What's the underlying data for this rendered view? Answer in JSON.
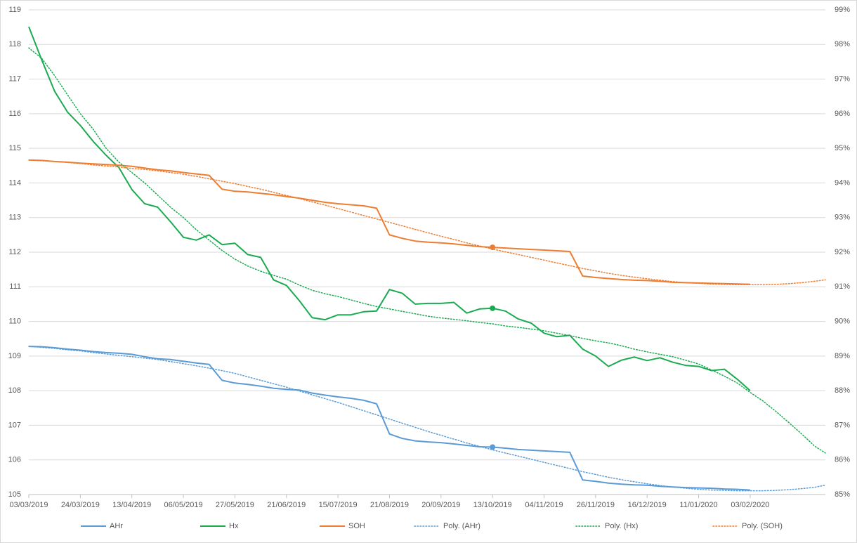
{
  "chart_data": {
    "type": "line",
    "x": [
      0,
      0.25,
      0.5,
      0.75,
      1,
      1.25,
      1.5,
      1.75,
      2,
      2.25,
      2.5,
      2.75,
      3,
      3.25,
      3.5,
      3.75,
      4,
      4.25,
      4.5,
      4.75,
      5,
      5.25,
      5.5,
      5.75,
      6,
      6.25,
      6.5,
      6.75,
      7,
      7.25,
      7.5,
      7.75,
      8,
      8.25,
      8.5,
      8.75,
      9,
      9.25,
      9.5,
      9.75,
      10,
      10.25,
      10.5,
      10.75,
      11,
      11.25,
      11.5,
      11.75,
      12,
      12.25,
      12.5,
      12.75,
      13,
      13.25,
      13.5,
      13.75,
      14,
      14.25,
      14.5,
      14.75,
      15,
      15.25,
      15.46
    ],
    "xlim": [
      0,
      15.46
    ],
    "xticks": [
      {
        "value": 0,
        "label": "03/03/2019"
      },
      {
        "value": 1,
        "label": "24/03/2019"
      },
      {
        "value": 2,
        "label": "13/04/2019"
      },
      {
        "value": 3,
        "label": "06/05/2019"
      },
      {
        "value": 4,
        "label": "27/05/2019"
      },
      {
        "value": 5,
        "label": "21/06/2019"
      },
      {
        "value": 6,
        "label": "15/07/2019"
      },
      {
        "value": 7,
        "label": "21/08/2019"
      },
      {
        "value": 8,
        "label": "20/09/2019"
      },
      {
        "value": 9,
        "label": "13/10/2019"
      },
      {
        "value": 10,
        "label": "04/11/2019"
      },
      {
        "value": 11,
        "label": "26/11/2019"
      },
      {
        "value": 12,
        "label": "16/12/2019"
      },
      {
        "value": 13,
        "label": "11/01/2020"
      },
      {
        "value": 14,
        "label": "03/02/2020"
      }
    ],
    "ylim": [
      105,
      119
    ],
    "yticks": [
      105,
      106,
      107,
      108,
      109,
      110,
      111,
      112,
      113,
      114,
      115,
      116,
      117,
      118,
      119
    ],
    "y2lim": [
      85,
      99
    ],
    "y2ticks": [
      {
        "value": 85,
        "label": "85%"
      },
      {
        "value": 86,
        "label": "86%"
      },
      {
        "value": 87,
        "label": "87%"
      },
      {
        "value": 88,
        "label": "88%"
      },
      {
        "value": 89,
        "label": "89%"
      },
      {
        "value": 90,
        "label": "90%"
      },
      {
        "value": 91,
        "label": "91%"
      },
      {
        "value": 92,
        "label": "92%"
      },
      {
        "value": 93,
        "label": "93%"
      },
      {
        "value": 94,
        "label": "94%"
      },
      {
        "value": 95,
        "label": "95%"
      },
      {
        "value": 96,
        "label": "96%"
      },
      {
        "value": 97,
        "label": "97%"
      },
      {
        "value": 98,
        "label": "98%"
      },
      {
        "value": 99,
        "label": "99%"
      }
    ],
    "grid": true,
    "legend": "bottom",
    "highlight_index": 36,
    "series": [
      {
        "name": "AHr",
        "color": "#5b9bd5",
        "dotted": false,
        "axis": "y",
        "values": [
          109.28,
          109.27,
          109.24,
          109.2,
          109.17,
          109.13,
          109.1,
          109.08,
          109.05,
          108.98,
          108.92,
          108.9,
          108.85,
          108.8,
          108.76,
          108.3,
          108.22,
          108.18,
          108.13,
          108.07,
          108.04,
          108.02,
          107.93,
          107.87,
          107.82,
          107.78,
          107.72,
          107.62,
          106.75,
          106.62,
          106.55,
          106.52,
          106.5,
          106.46,
          106.42,
          106.38,
          106.37,
          106.34,
          106.3,
          106.28,
          106.26,
          106.24,
          106.22,
          105.42,
          105.38,
          105.33,
          105.3,
          105.28,
          105.27,
          105.24,
          105.22,
          105.2,
          105.19,
          105.18,
          105.16,
          105.15,
          105.13,
          null,
          null,
          null,
          null,
          null,
          null
        ]
      },
      {
        "name": "Hx",
        "color": "#1aab50",
        "dotted": false,
        "axis": "y",
        "values": [
          118.51,
          117.56,
          116.65,
          116.05,
          115.66,
          115.2,
          114.8,
          114.44,
          113.81,
          113.4,
          113.3,
          112.88,
          112.43,
          112.35,
          112.5,
          112.22,
          112.26,
          111.93,
          111.85,
          111.2,
          111.04,
          110.6,
          110.11,
          110.05,
          110.19,
          110.19,
          110.28,
          110.3,
          110.92,
          110.81,
          110.5,
          110.52,
          110.52,
          110.55,
          110.24,
          110.36,
          110.38,
          110.3,
          110.07,
          109.95,
          109.66,
          109.56,
          109.6,
          109.2,
          109,
          108.7,
          108.88,
          108.97,
          108.87,
          108.95,
          108.82,
          108.73,
          108.7,
          108.58,
          108.62,
          108.33,
          108,
          null,
          null,
          null,
          null,
          null,
          null
        ]
      },
      {
        "name": "SOH",
        "color": "#ed7d31",
        "dotted": false,
        "axis": "y2",
        "values": [
          94.66,
          94.65,
          94.62,
          94.6,
          94.57,
          94.55,
          94.53,
          94.51,
          94.48,
          94.43,
          94.38,
          94.35,
          94.3,
          94.26,
          94.22,
          93.82,
          93.76,
          93.74,
          93.7,
          93.66,
          93.61,
          93.56,
          93.5,
          93.44,
          93.4,
          93.37,
          93.34,
          93.27,
          92.5,
          92.4,
          92.32,
          92.29,
          92.27,
          92.24,
          92.2,
          92.16,
          92.14,
          92.12,
          92.1,
          92.08,
          92.06,
          92.04,
          92.02,
          91.31,
          91.27,
          91.24,
          91.21,
          91.19,
          91.18,
          91.16,
          91.13,
          91.12,
          91.11,
          91.1,
          91.09,
          91.08,
          91.07,
          null,
          null,
          null,
          null,
          null,
          null
        ]
      },
      {
        "name": "Poly. (AHr)",
        "color": "#5b9bd5",
        "dotted": true,
        "axis": "y",
        "values": [
          109.28,
          109.25,
          109.22,
          109.18,
          109.15,
          109.1,
          109.06,
          109.02,
          108.98,
          108.94,
          108.9,
          108.84,
          108.78,
          108.72,
          108.65,
          108.58,
          108.5,
          108.4,
          108.3,
          108.2,
          108.1,
          107.99,
          107.88,
          107.77,
          107.66,
          107.54,
          107.42,
          107.3,
          107.18,
          107.06,
          106.94,
          106.82,
          106.71,
          106.6,
          106.49,
          106.39,
          106.29,
          106.2,
          106.11,
          106.02,
          105.93,
          105.84,
          105.75,
          105.66,
          105.58,
          105.5,
          105.43,
          105.37,
          105.31,
          105.26,
          105.22,
          105.18,
          105.15,
          105.13,
          105.12,
          105.11,
          105.11,
          105.11,
          105.12,
          105.14,
          105.17,
          105.21,
          105.27
        ]
      },
      {
        "name": "Poly. (Hx)",
        "color": "#1aab50",
        "dotted": true,
        "axis": "y",
        "values": [
          117.9,
          117.6,
          117.1,
          116.55,
          116,
          115.55,
          115,
          114.6,
          114.3,
          114,
          113.65,
          113.3,
          113,
          112.65,
          112.35,
          112.05,
          111.8,
          111.6,
          111.45,
          111.33,
          111.22,
          111.05,
          110.9,
          110.8,
          110.72,
          110.62,
          110.52,
          110.43,
          110.36,
          110.29,
          110.22,
          110.15,
          110.1,
          110.06,
          110.02,
          109.97,
          109.93,
          109.87,
          109.83,
          109.78,
          109.73,
          109.66,
          109.59,
          109.51,
          109.44,
          109.38,
          109.3,
          109.2,
          109.12,
          109.05,
          108.98,
          108.88,
          108.77,
          108.6,
          108.42,
          108.22,
          107.95,
          107.7,
          107.4,
          107.08,
          106.75,
          106.4,
          106.2
        ]
      },
      {
        "name": "Poly. (SOH)",
        "color": "#ed7d31",
        "dotted": true,
        "axis": "y2",
        "values": [
          94.66,
          94.64,
          94.62,
          94.59,
          94.56,
          94.52,
          94.49,
          94.46,
          94.42,
          94.39,
          94.35,
          94.3,
          94.25,
          94.19,
          94.12,
          94.05,
          93.98,
          93.9,
          93.82,
          93.73,
          93.64,
          93.55,
          93.45,
          93.36,
          93.26,
          93.16,
          93.06,
          92.96,
          92.86,
          92.76,
          92.66,
          92.56,
          92.46,
          92.37,
          92.27,
          92.18,
          92.09,
          92.01,
          91.93,
          91.85,
          91.77,
          91.69,
          91.61,
          91.53,
          91.46,
          91.39,
          91.33,
          91.28,
          91.23,
          91.19,
          91.15,
          91.12,
          91.1,
          91.08,
          91.07,
          91.06,
          91.06,
          91.06,
          91.07,
          91.09,
          91.12,
          91.16,
          91.2
        ]
      }
    ]
  }
}
